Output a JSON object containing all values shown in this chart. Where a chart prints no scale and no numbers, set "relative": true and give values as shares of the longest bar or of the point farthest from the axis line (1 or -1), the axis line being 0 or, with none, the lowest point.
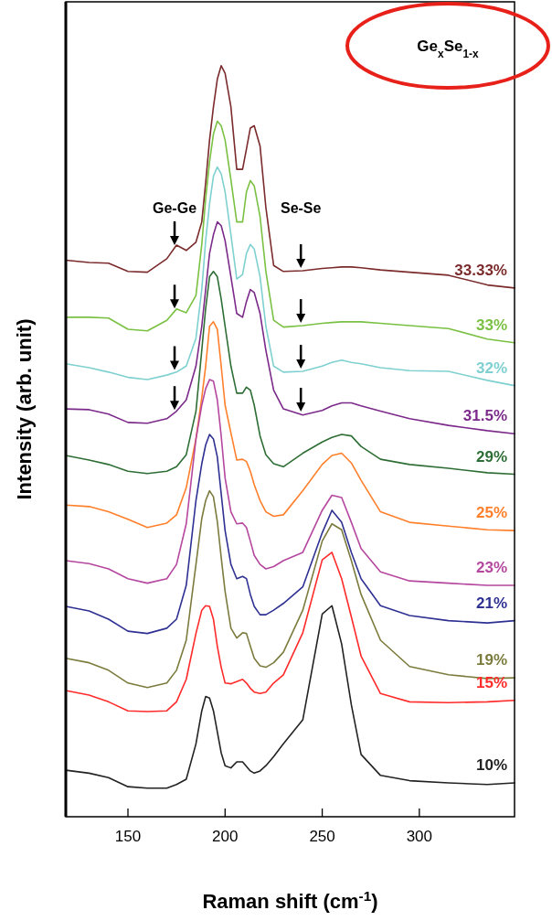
{
  "chart_data": {
    "type": "line",
    "relative": true,
    "xlabel": "Raman shift (cm$^{-1}$)",
    "ylabel": "Intensity (arb. unit)",
    "xlim": [
      118,
      349
    ],
    "xticks": [
      150,
      200,
      250,
      300
    ],
    "annotations": [
      "Ge-Ge",
      "Se-Se",
      "Ge$_{x}$Se$_{1-x}$"
    ],
    "x": [
      118,
      130,
      140,
      150,
      160,
      170,
      175,
      180,
      185,
      188,
      190,
      192,
      194,
      196,
      198,
      200,
      203,
      206,
      209,
      211,
      213,
      215,
      218,
      221,
      225,
      230,
      240,
      250,
      255,
      260,
      265,
      270,
      280,
      295,
      315,
      335,
      349
    ],
    "series": [
      {
        "name": "33.33%",
        "color": "#7b2b2b",
        "values": [
          0.741,
          0.738,
          0.737,
          0.726,
          0.725,
          0.743,
          0.761,
          0.754,
          0.765,
          0.792,
          0.844,
          0.901,
          0.945,
          0.982,
          1,
          0.99,
          0.945,
          0.862,
          0.862,
          0.889,
          0.917,
          0.92,
          0.893,
          0.811,
          0.734,
          0.726,
          0.727,
          0.73,
          0.731,
          0.732,
          0.732,
          0.731,
          0.728,
          0.725,
          0.721,
          0.708,
          0.704
        ]
      },
      {
        "name": "33%",
        "color": "#7ac143",
        "values": [
          0.665,
          0.665,
          0.664,
          0.649,
          0.647,
          0.661,
          0.676,
          0.671,
          0.694,
          0.762,
          0.823,
          0.872,
          0.909,
          0.926,
          0.92,
          0.901,
          0.848,
          0.792,
          0.792,
          0.832,
          0.847,
          0.84,
          0.799,
          0.726,
          0.661,
          0.652,
          0.654,
          0.657,
          0.658,
          0.659,
          0.659,
          0.659,
          0.657,
          0.654,
          0.65,
          0.636,
          0.631
        ]
      },
      {
        "name": "32%",
        "color": "#7fd0d0",
        "values": [
          0.603,
          0.598,
          0.592,
          0.585,
          0.582,
          0.588,
          0.592,
          0.6,
          0.637,
          0.702,
          0.767,
          0.816,
          0.853,
          0.865,
          0.856,
          0.832,
          0.775,
          0.716,
          0.722,
          0.75,
          0.762,
          0.756,
          0.719,
          0.653,
          0.6,
          0.592,
          0.593,
          0.6,
          0.605,
          0.608,
          0.605,
          0.603,
          0.598,
          0.594,
          0.593,
          0.581,
          0.574
        ]
      },
      {
        "name": "31.5%",
        "color": "#7b2a8a",
        "values": [
          0.543,
          0.542,
          0.536,
          0.525,
          0.524,
          0.53,
          0.54,
          0.555,
          0.6,
          0.653,
          0.702,
          0.75,
          0.775,
          0.792,
          0.787,
          0.767,
          0.719,
          0.67,
          0.665,
          0.686,
          0.702,
          0.698,
          0.67,
          0.621,
          0.568,
          0.543,
          0.535,
          0.541,
          0.547,
          0.551,
          0.551,
          0.547,
          0.54,
          0.53,
          0.521,
          0.514,
          0.51
        ]
      },
      {
        "name": "29%",
        "color": "#2e6e35",
        "values": [
          0.481,
          0.475,
          0.469,
          0.46,
          0.457,
          0.46,
          0.466,
          0.482,
          0.54,
          0.621,
          0.677,
          0.719,
          0.726,
          0.719,
          0.689,
          0.653,
          0.6,
          0.564,
          0.564,
          0.572,
          0.568,
          0.548,
          0.507,
          0.482,
          0.47,
          0.466,
          0.484,
          0.499,
          0.505,
          0.509,
          0.507,
          0.493,
          0.476,
          0.469,
          0.464,
          0.458,
          0.456
        ]
      },
      {
        "name": "25%",
        "color": "#ff7f2a",
        "values": [
          0.415,
          0.413,
          0.406,
          0.396,
          0.385,
          0.391,
          0.402,
          0.438,
          0.503,
          0.558,
          0.6,
          0.653,
          0.659,
          0.649,
          0.6,
          0.548,
          0.511,
          0.475,
          0.476,
          0.473,
          0.46,
          0.442,
          0.421,
          0.406,
          0.4,
          0.402,
          0.434,
          0.469,
          0.481,
          0.484,
          0.471,
          0.448,
          0.406,
          0.392,
          0.387,
          0.382,
          0.381
        ]
      },
      {
        "name": "23%",
        "color": "#b5479f",
        "values": [
          0.341,
          0.337,
          0.33,
          0.317,
          0.311,
          0.317,
          0.336,
          0.39,
          0.503,
          0.548,
          0.57,
          0.582,
          0.58,
          0.555,
          0.507,
          0.451,
          0.406,
          0.39,
          0.391,
          0.385,
          0.367,
          0.348,
          0.336,
          0.33,
          0.333,
          0.341,
          0.352,
          0.408,
          0.428,
          0.425,
          0.392,
          0.357,
          0.326,
          0.314,
          0.311,
          0.308,
          0.308
        ]
      },
      {
        "name": "21%",
        "color": "#2e3192",
        "values": [
          0.28,
          0.274,
          0.263,
          0.247,
          0.244,
          0.251,
          0.263,
          0.308,
          0.421,
          0.47,
          0.495,
          0.509,
          0.503,
          0.479,
          0.43,
          0.381,
          0.336,
          0.317,
          0.32,
          0.317,
          0.296,
          0.28,
          0.269,
          0.269,
          0.275,
          0.284,
          0.306,
          0.378,
          0.408,
          0.392,
          0.352,
          0.317,
          0.281,
          0.268,
          0.261,
          0.258,
          0.261
        ]
      },
      {
        "name": "19%",
        "color": "#7b7b3d",
        "values": [
          0.211,
          0.205,
          0.195,
          0.178,
          0.172,
          0.178,
          0.195,
          0.235,
          0.336,
          0.397,
          0.421,
          0.434,
          0.426,
          0.393,
          0.345,
          0.3,
          0.251,
          0.238,
          0.245,
          0.244,
          0.227,
          0.211,
          0.201,
          0.199,
          0.205,
          0.219,
          0.275,
          0.367,
          0.39,
          0.382,
          0.341,
          0.296,
          0.235,
          0.2,
          0.189,
          0.184,
          0.185
        ]
      },
      {
        "name": "15%",
        "color": "#ff2a2a",
        "values": [
          0.168,
          0.162,
          0.153,
          0.141,
          0.14,
          0.141,
          0.153,
          0.183,
          0.244,
          0.275,
          0.281,
          0.28,
          0.263,
          0.227,
          0.199,
          0.178,
          0.177,
          0.18,
          0.183,
          0.178,
          0.171,
          0.166,
          0.164,
          0.166,
          0.178,
          0.189,
          0.245,
          0.342,
          0.352,
          0.317,
          0.266,
          0.214,
          0.164,
          0.153,
          0.152,
          0.153,
          0.155
        ]
      },
      {
        "name": "10%",
        "color": "#222222",
        "values": [
          0.062,
          0.058,
          0.052,
          0.04,
          0.038,
          0.038,
          0.043,
          0.05,
          0.097,
          0.141,
          0.16,
          0.158,
          0.141,
          0.113,
          0.085,
          0.068,
          0.065,
          0.073,
          0.073,
          0.067,
          0.061,
          0.058,
          0.061,
          0.068,
          0.08,
          0.097,
          0.129,
          0.27,
          0.281,
          0.23,
          0.149,
          0.083,
          0.055,
          0.048,
          0.045,
          0.043,
          0.045
        ]
      }
    ]
  }
}
